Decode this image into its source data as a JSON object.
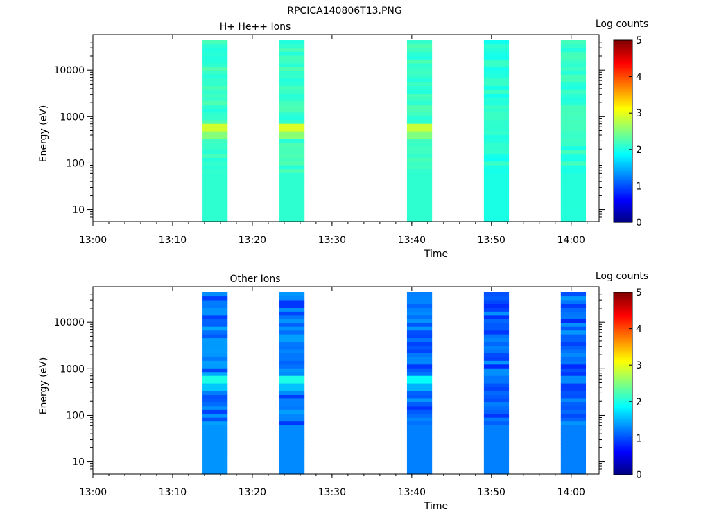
{
  "title": "RPCICA140806T13.PNG",
  "colors": {
    "colormap": "jet",
    "frame": "#000000",
    "background": "#ffffff"
  },
  "chart_data": [
    {
      "type": "heatmap",
      "title": "H+ He++ Ions",
      "xlabel": "Time",
      "ylabel": "Energy (eV)",
      "colorbar_label": "Log counts",
      "colorbar_ticks": [
        "0",
        "1",
        "2",
        "3",
        "4",
        "5"
      ],
      "colorbar_range": [
        0,
        5
      ],
      "x_ticks": [
        "13:00",
        "13:10",
        "13:20",
        "13:30",
        "13:40",
        "13:50",
        "14:00"
      ],
      "y_ticks": [
        "10",
        "100",
        "1000",
        "10000"
      ],
      "y_scale": "log",
      "xlim": [
        "13:00",
        "14:03.5"
      ],
      "ylim": [
        5.5,
        44000
      ],
      "grid": false,
      "legend": "none",
      "columns": [
        {
          "start": "13:13.75",
          "end": "13:16.9",
          "peak_energy_eV": 560,
          "peak_level": 2.9,
          "base_level": 2.15
        },
        {
          "start": "13:23.4",
          "end": "13:26.55",
          "peak_energy_eV": 560,
          "peak_level": 2.95,
          "base_level": 2.15
        },
        {
          "start": "13:39.4",
          "end": "13:42.55",
          "peak_energy_eV": 560,
          "peak_level": 2.85,
          "base_level": 2.15
        },
        {
          "start": "13:49.05",
          "end": "13:52.2",
          "peak_energy_eV": null,
          "peak_level": 2.1,
          "base_level": 2.05
        },
        {
          "start": "13:58.7",
          "end": "14:01.85",
          "peak_energy_eV": 560,
          "peak_level": 2.2,
          "base_level": 2.1
        }
      ]
    },
    {
      "type": "heatmap",
      "title": "Other Ions",
      "xlabel": "Time",
      "ylabel": "Energy (eV)",
      "colorbar_label": "Log counts",
      "colorbar_ticks": [
        "0",
        "1",
        "2",
        "3",
        "4",
        "5"
      ],
      "colorbar_range": [
        0,
        5
      ],
      "x_ticks": [
        "13:00",
        "13:10",
        "13:20",
        "13:30",
        "13:40",
        "13:50",
        "14:00"
      ],
      "y_ticks": [
        "10",
        "100",
        "1000",
        "10000"
      ],
      "y_scale": "log",
      "xlim": [
        "13:00",
        "14:03.5"
      ],
      "ylim": [
        5.5,
        44000
      ],
      "grid": false,
      "legend": "none",
      "columns": [
        {
          "start": "13:13.75",
          "end": "13:16.9",
          "peak_energy_eV": 560,
          "peak_level": 2.0,
          "base_level": 1.2
        },
        {
          "start": "13:23.4",
          "end": "13:26.55",
          "peak_energy_eV": 560,
          "peak_level": 2.0,
          "base_level": 1.15
        },
        {
          "start": "13:39.4",
          "end": "13:42.55",
          "peak_energy_eV": 560,
          "peak_level": 1.9,
          "base_level": 1.1
        },
        {
          "start": "13:49.05",
          "end": "13:52.2",
          "peak_energy_eV": null,
          "peak_level": 1.2,
          "base_level": 1.1
        },
        {
          "start": "13:58.7",
          "end": "14:01.85",
          "peak_energy_eV": null,
          "peak_level": 1.3,
          "base_level": 1.1
        }
      ]
    }
  ]
}
